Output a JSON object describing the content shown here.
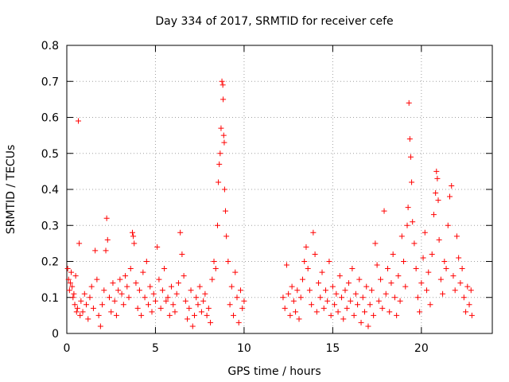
{
  "chart_data": {
    "type": "scatter",
    "title": "Day 334 of 2017, SRMTID for receiver cefe",
    "xlabel": "GPS time / hours",
    "ylabel": "SRMTID / TECUs",
    "xlim": [
      0,
      24
    ],
    "ylim": [
      0,
      0.8
    ],
    "grid": true,
    "marker": "+",
    "series_color": "#ff0000",
    "x_ticks": [
      0,
      5,
      10,
      15,
      20
    ],
    "x_tick_labels": [
      "0",
      "5",
      "10",
      "15",
      "20"
    ],
    "y_ticks": [
      0,
      0.1,
      0.2,
      0.3,
      0.4,
      0.5,
      0.6,
      0.7,
      0.8
    ],
    "y_tick_labels": [
      "0",
      "0.1",
      "0.2",
      "0.3",
      "0.4",
      "0.5",
      "0.6",
      "0.7",
      "0.8"
    ],
    "data_gap_hours": [
      10.0,
      12.2
    ],
    "series": [
      {
        "name": "SRMTID",
        "points": [
          [
            0.05,
            0.18
          ],
          [
            0.1,
            0.15
          ],
          [
            0.15,
            0.12
          ],
          [
            0.2,
            0.14
          ],
          [
            0.25,
            0.17
          ],
          [
            0.3,
            0.13
          ],
          [
            0.35,
            0.1
          ],
          [
            0.4,
            0.11
          ],
          [
            0.45,
            0.08
          ],
          [
            0.5,
            0.16
          ],
          [
            0.55,
            0.06
          ],
          [
            0.6,
            0.07
          ],
          [
            0.65,
            0.59
          ],
          [
            0.7,
            0.25
          ],
          [
            0.75,
            0.05
          ],
          [
            0.8,
            0.09
          ],
          [
            0.9,
            0.06
          ],
          [
            1.0,
            0.11
          ],
          [
            1.1,
            0.08
          ],
          [
            1.2,
            0.04
          ],
          [
            1.3,
            0.1
          ],
          [
            1.4,
            0.13
          ],
          [
            1.5,
            0.07
          ],
          [
            1.6,
            0.23
          ],
          [
            1.7,
            0.15
          ],
          [
            1.8,
            0.05
          ],
          [
            1.9,
            0.02
          ],
          [
            2.0,
            0.08
          ],
          [
            2.1,
            0.12
          ],
          [
            2.2,
            0.23
          ],
          [
            2.25,
            0.32
          ],
          [
            2.3,
            0.26
          ],
          [
            2.4,
            0.1
          ],
          [
            2.5,
            0.06
          ],
          [
            2.6,
            0.14
          ],
          [
            2.7,
            0.09
          ],
          [
            2.8,
            0.05
          ],
          [
            2.9,
            0.12
          ],
          [
            3.0,
            0.15
          ],
          [
            3.1,
            0.11
          ],
          [
            3.2,
            0.08
          ],
          [
            3.3,
            0.16
          ],
          [
            3.4,
            0.13
          ],
          [
            3.5,
            0.1
          ],
          [
            3.6,
            0.18
          ],
          [
            3.7,
            0.28
          ],
          [
            3.75,
            0.27
          ],
          [
            3.8,
            0.25
          ],
          [
            3.9,
            0.14
          ],
          [
            4.0,
            0.07
          ],
          [
            4.1,
            0.12
          ],
          [
            4.2,
            0.05
          ],
          [
            4.3,
            0.17
          ],
          [
            4.4,
            0.1
          ],
          [
            4.5,
            0.2
          ],
          [
            4.6,
            0.08
          ],
          [
            4.7,
            0.13
          ],
          [
            4.8,
            0.06
          ],
          [
            4.9,
            0.11
          ],
          [
            5.0,
            0.09
          ],
          [
            5.1,
            0.24
          ],
          [
            5.2,
            0.15
          ],
          [
            5.3,
            0.07
          ],
          [
            5.4,
            0.12
          ],
          [
            5.5,
            0.18
          ],
          [
            5.6,
            0.09
          ],
          [
            5.7,
            0.1
          ],
          [
            5.8,
            0.05
          ],
          [
            5.9,
            0.13
          ],
          [
            6.0,
            0.08
          ],
          [
            6.1,
            0.06
          ],
          [
            6.2,
            0.11
          ],
          [
            6.3,
            0.14
          ],
          [
            6.4,
            0.28
          ],
          [
            6.5,
            0.22
          ],
          [
            6.6,
            0.16
          ],
          [
            6.7,
            0.09
          ],
          [
            6.8,
            0.04
          ],
          [
            6.9,
            0.07
          ],
          [
            7.0,
            0.12
          ],
          [
            7.1,
            0.02
          ],
          [
            7.2,
            0.05
          ],
          [
            7.3,
            0.1
          ],
          [
            7.4,
            0.08
          ],
          [
            7.5,
            0.13
          ],
          [
            7.6,
            0.06
          ],
          [
            7.7,
            0.09
          ],
          [
            7.8,
            0.11
          ],
          [
            7.9,
            0.05
          ],
          [
            8.0,
            0.07
          ],
          [
            8.1,
            0.03
          ],
          [
            8.2,
            0.15
          ],
          [
            8.3,
            0.2
          ],
          [
            8.4,
            0.18
          ],
          [
            8.5,
            0.3
          ],
          [
            8.55,
            0.42
          ],
          [
            8.6,
            0.47
          ],
          [
            8.65,
            0.5
          ],
          [
            8.7,
            0.57
          ],
          [
            8.75,
            0.7
          ],
          [
            8.8,
            0.69
          ],
          [
            8.82,
            0.65
          ],
          [
            8.85,
            0.55
          ],
          [
            8.88,
            0.53
          ],
          [
            8.9,
            0.4
          ],
          [
            8.95,
            0.34
          ],
          [
            9.0,
            0.27
          ],
          [
            9.1,
            0.2
          ],
          [
            9.2,
            0.08
          ],
          [
            9.3,
            0.13
          ],
          [
            9.4,
            0.05
          ],
          [
            9.5,
            0.17
          ],
          [
            9.6,
            0.1
          ],
          [
            9.7,
            0.03
          ],
          [
            9.8,
            0.12
          ],
          [
            9.9,
            0.07
          ],
          [
            10.0,
            0.09
          ],
          [
            12.2,
            0.1
          ],
          [
            12.3,
            0.07
          ],
          [
            12.4,
            0.19
          ],
          [
            12.5,
            0.11
          ],
          [
            12.6,
            0.05
          ],
          [
            12.7,
            0.13
          ],
          [
            12.8,
            0.09
          ],
          [
            12.9,
            0.06
          ],
          [
            13.0,
            0.12
          ],
          [
            13.1,
            0.04
          ],
          [
            13.2,
            0.1
          ],
          [
            13.3,
            0.15
          ],
          [
            13.4,
            0.2
          ],
          [
            13.5,
            0.24
          ],
          [
            13.6,
            0.18
          ],
          [
            13.7,
            0.12
          ],
          [
            13.8,
            0.08
          ],
          [
            13.9,
            0.28
          ],
          [
            14.0,
            0.22
          ],
          [
            14.1,
            0.06
          ],
          [
            14.2,
            0.14
          ],
          [
            14.3,
            0.1
          ],
          [
            14.4,
            0.17
          ],
          [
            14.5,
            0.07
          ],
          [
            14.6,
            0.12
          ],
          [
            14.7,
            0.09
          ],
          [
            14.8,
            0.2
          ],
          [
            14.9,
            0.05
          ],
          [
            15.0,
            0.13
          ],
          [
            15.1,
            0.08
          ],
          [
            15.2,
            0.11
          ],
          [
            15.3,
            0.06
          ],
          [
            15.4,
            0.16
          ],
          [
            15.5,
            0.1
          ],
          [
            15.6,
            0.04
          ],
          [
            15.7,
            0.12
          ],
          [
            15.8,
            0.07
          ],
          [
            15.9,
            0.14
          ],
          [
            16.0,
            0.09
          ],
          [
            16.1,
            0.18
          ],
          [
            16.2,
            0.05
          ],
          [
            16.3,
            0.11
          ],
          [
            16.4,
            0.08
          ],
          [
            16.5,
            0.15
          ],
          [
            16.6,
            0.03
          ],
          [
            16.7,
            0.1
          ],
          [
            16.8,
            0.06
          ],
          [
            16.9,
            0.13
          ],
          [
            17.0,
            0.02
          ],
          [
            17.1,
            0.08
          ],
          [
            17.2,
            0.12
          ],
          [
            17.3,
            0.05
          ],
          [
            17.4,
            0.25
          ],
          [
            17.5,
            0.19
          ],
          [
            17.6,
            0.09
          ],
          [
            17.7,
            0.15
          ],
          [
            17.8,
            0.07
          ],
          [
            17.9,
            0.34
          ],
          [
            18.0,
            0.11
          ],
          [
            18.1,
            0.18
          ],
          [
            18.2,
            0.06
          ],
          [
            18.3,
            0.14
          ],
          [
            18.4,
            0.22
          ],
          [
            18.5,
            0.1
          ],
          [
            18.6,
            0.05
          ],
          [
            18.7,
            0.16
          ],
          [
            18.8,
            0.09
          ],
          [
            18.9,
            0.27
          ],
          [
            19.0,
            0.2
          ],
          [
            19.1,
            0.13
          ],
          [
            19.2,
            0.3
          ],
          [
            19.25,
            0.35
          ],
          [
            19.3,
            0.64
          ],
          [
            19.35,
            0.54
          ],
          [
            19.4,
            0.49
          ],
          [
            19.45,
            0.42
          ],
          [
            19.5,
            0.31
          ],
          [
            19.6,
            0.25
          ],
          [
            19.7,
            0.18
          ],
          [
            19.8,
            0.1
          ],
          [
            19.9,
            0.06
          ],
          [
            20.0,
            0.14
          ],
          [
            20.1,
            0.21
          ],
          [
            20.2,
            0.28
          ],
          [
            20.3,
            0.12
          ],
          [
            20.4,
            0.17
          ],
          [
            20.5,
            0.08
          ],
          [
            20.6,
            0.22
          ],
          [
            20.7,
            0.33
          ],
          [
            20.8,
            0.39
          ],
          [
            20.85,
            0.45
          ],
          [
            20.9,
            0.43
          ],
          [
            20.95,
            0.37
          ],
          [
            21.0,
            0.26
          ],
          [
            21.1,
            0.15
          ],
          [
            21.2,
            0.11
          ],
          [
            21.3,
            0.2
          ],
          [
            21.4,
            0.18
          ],
          [
            21.5,
            0.3
          ],
          [
            21.6,
            0.38
          ],
          [
            21.7,
            0.41
          ],
          [
            21.8,
            0.16
          ],
          [
            21.9,
            0.12
          ],
          [
            22.0,
            0.27
          ],
          [
            22.1,
            0.21
          ],
          [
            22.2,
            0.14
          ],
          [
            22.3,
            0.18
          ],
          [
            22.4,
            0.1
          ],
          [
            22.5,
            0.06
          ],
          [
            22.6,
            0.13
          ],
          [
            22.7,
            0.08
          ],
          [
            22.8,
            0.12
          ],
          [
            22.85,
            0.05
          ]
        ]
      }
    ]
  }
}
